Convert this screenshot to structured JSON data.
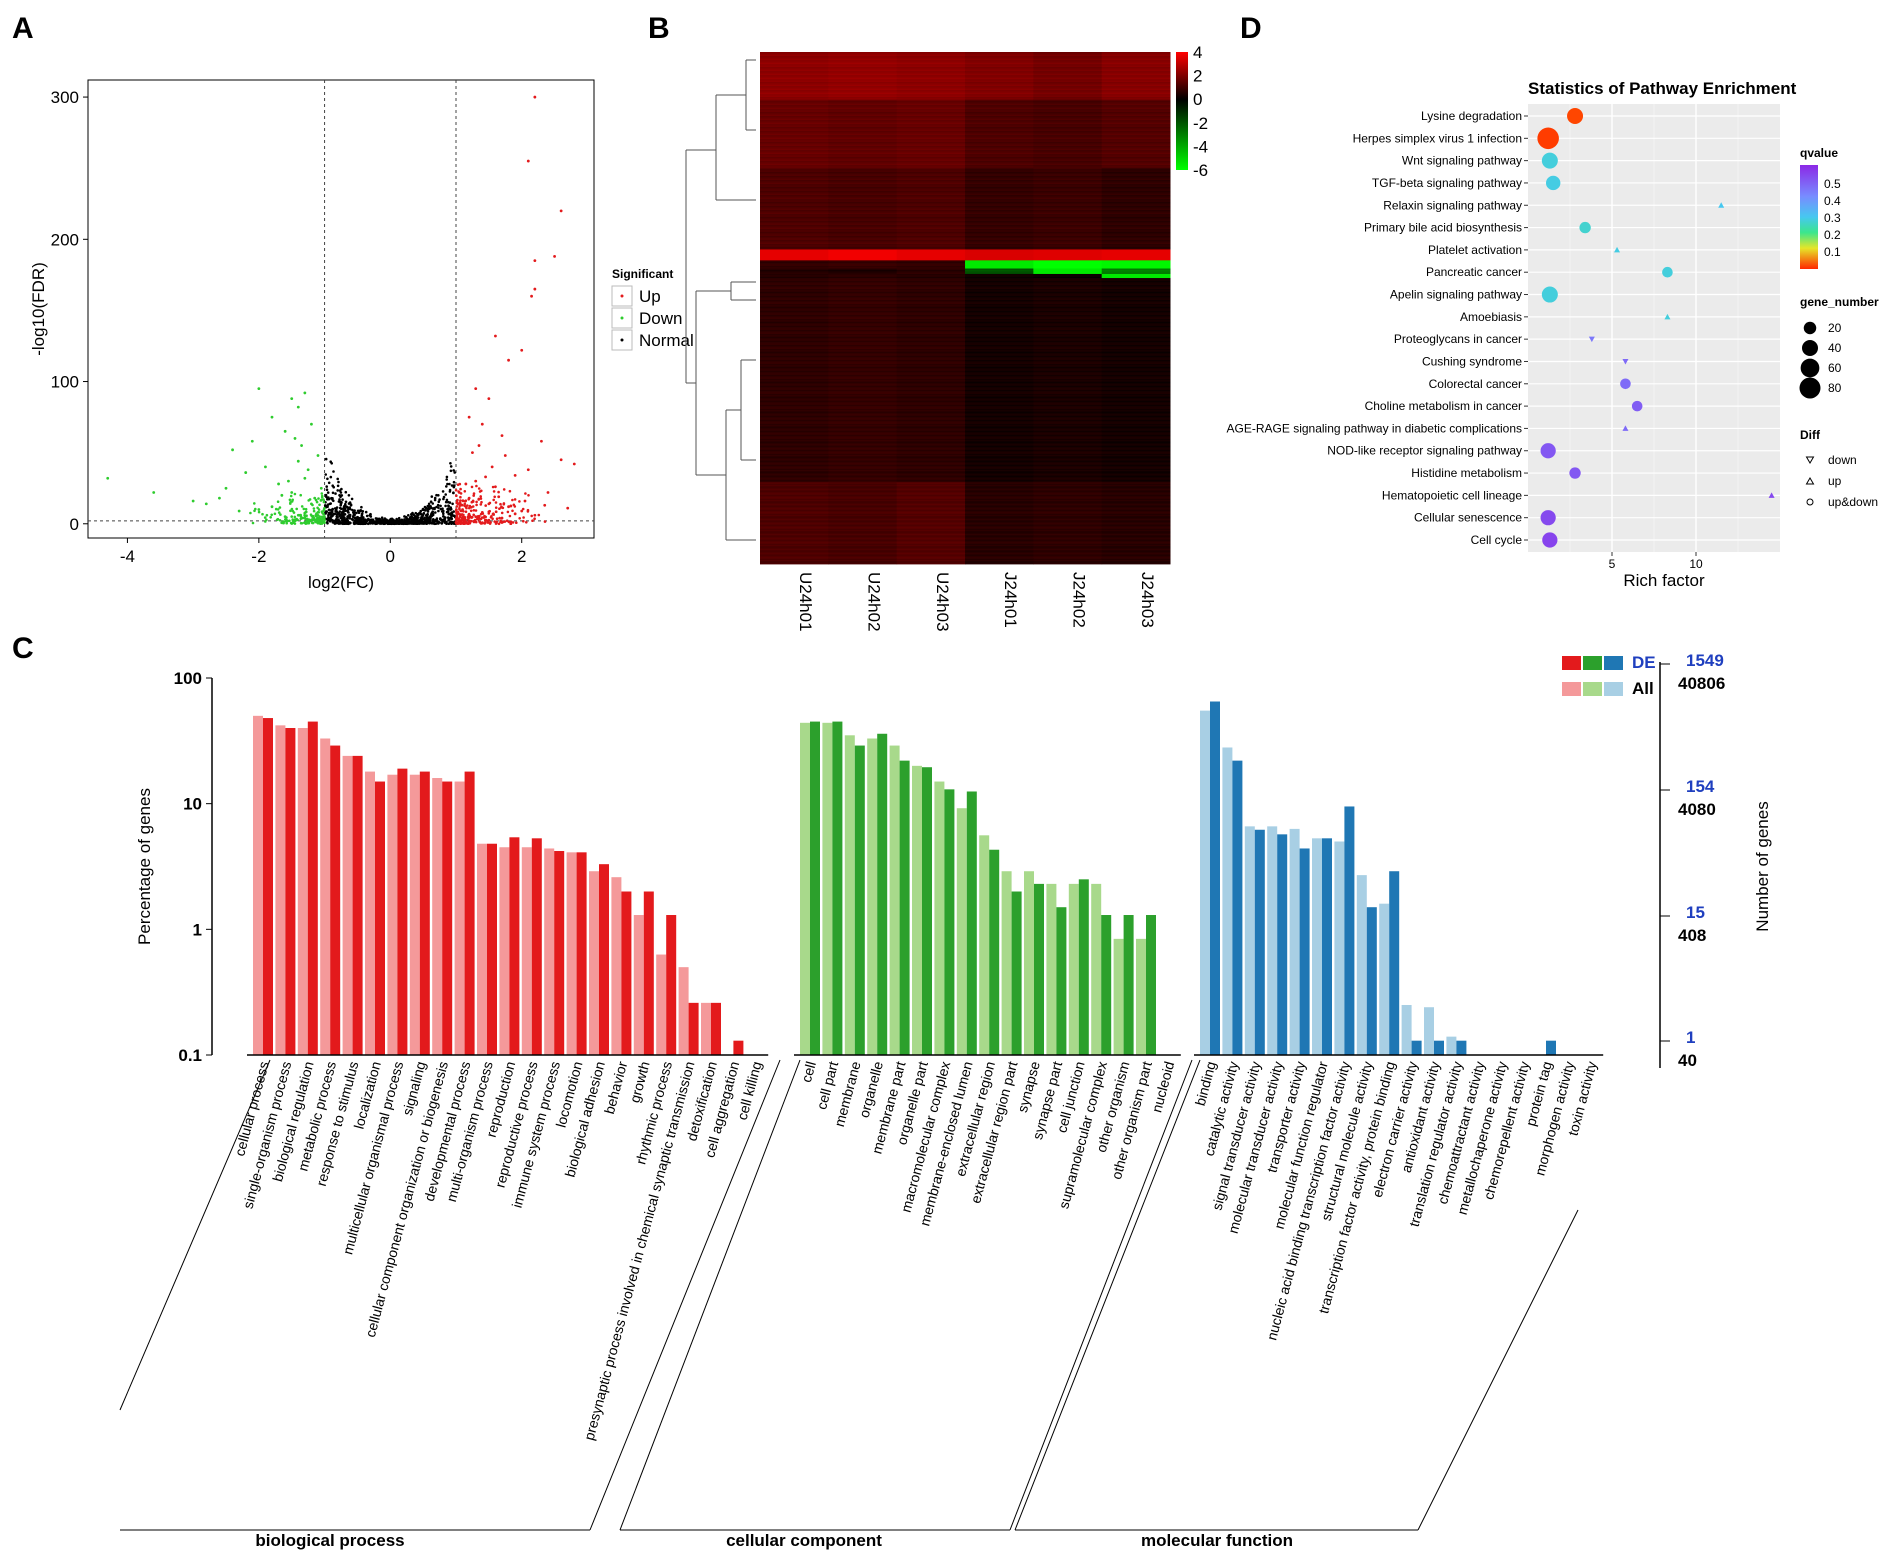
{
  "panels": {
    "a": "A",
    "b": "B",
    "c": "C",
    "d": "D"
  },
  "chart_data": [
    {
      "id": "A",
      "type": "scatter",
      "title": "",
      "xlabel": "log2(FC)",
      "ylabel": "-log10(FDR)",
      "xlim": [
        -4.6,
        3.1
      ],
      "ylim": [
        -10,
        312
      ],
      "xticks": [
        -4,
        -2,
        0,
        2
      ],
      "yticks": [
        0,
        100,
        200,
        300
      ],
      "fc_threshold": [
        -1,
        1
      ],
      "fdr_threshold": 2,
      "legend": {
        "title": "Significant",
        "entries": [
          "Up",
          "Down",
          "Normal"
        ],
        "placement": "right"
      },
      "colors": {
        "Up": "#e31a1c",
        "Down": "#2ecc2e",
        "Normal": "#000000"
      },
      "series": [
        {
          "name": "Up",
          "points": [
            [
              2.2,
              300
            ],
            [
              2.1,
              255
            ],
            [
              2.6,
              220
            ],
            [
              2.2,
              185
            ],
            [
              2.5,
              188
            ],
            [
              2.2,
              165
            ],
            [
              2.15,
              160
            ],
            [
              1.6,
              132
            ],
            [
              1.8,
              115
            ],
            [
              2.0,
              122
            ],
            [
              1.3,
              95
            ],
            [
              1.5,
              88
            ],
            [
              1.2,
              75
            ],
            [
              1.4,
              70
            ],
            [
              1.7,
              62
            ],
            [
              2.3,
              58
            ],
            [
              2.6,
              45
            ],
            [
              2.8,
              42
            ],
            [
              2.1,
              38
            ],
            [
              1.9,
              34
            ],
            [
              1.3,
              30
            ],
            [
              1.6,
              26
            ],
            [
              2.4,
              22
            ],
            [
              1.2,
              18
            ],
            [
              1.5,
              14
            ],
            [
              1.8,
              12
            ],
            [
              1.1,
              10
            ],
            [
              1.4,
              8
            ],
            [
              2.0,
              9
            ],
            [
              2.7,
              11
            ],
            [
              1.3,
              5
            ],
            [
              1.7,
              4
            ],
            [
              1.1,
              3
            ],
            [
              2.2,
              6
            ],
            [
              1.9,
              7
            ],
            [
              1.25,
              50
            ],
            [
              1.35,
              55
            ],
            [
              1.55,
              40
            ],
            [
              1.45,
              33
            ],
            [
              1.15,
              28
            ],
            [
              1.05,
              22
            ],
            [
              1.65,
              19
            ],
            [
              2.05,
              16
            ],
            [
              2.35,
              13
            ],
            [
              1.75,
              48
            ]
          ]
        },
        {
          "name": "Down",
          "points": [
            [
              -2.0,
              95
            ],
            [
              -1.5,
              88
            ],
            [
              -1.4,
              82
            ],
            [
              -1.3,
              92
            ],
            [
              -1.8,
              75
            ],
            [
              -1.2,
              70
            ],
            [
              -1.6,
              65
            ],
            [
              -2.1,
              58
            ],
            [
              -2.4,
              52
            ],
            [
              -1.1,
              48
            ],
            [
              -1.4,
              44
            ],
            [
              -1.9,
              40
            ],
            [
              -2.2,
              36
            ],
            [
              -1.3,
              32
            ],
            [
              -1.7,
              28
            ],
            [
              -1.05,
              25
            ],
            [
              -1.5,
              22
            ],
            [
              -2.6,
              18
            ],
            [
              -3.0,
              16
            ],
            [
              -3.6,
              22
            ],
            [
              -4.3,
              32
            ],
            [
              -1.2,
              14
            ],
            [
              -1.8,
              12
            ],
            [
              -2.0,
              10
            ],
            [
              -1.1,
              8
            ],
            [
              -1.4,
              6
            ],
            [
              -1.6,
              5
            ],
            [
              -1.3,
              4
            ],
            [
              -2.3,
              9
            ],
            [
              -1.15,
              18
            ],
            [
              -1.25,
              38
            ],
            [
              -1.35,
              55
            ],
            [
              -1.45,
              60
            ],
            [
              -1.55,
              30
            ],
            [
              -1.65,
              20
            ],
            [
              -2.5,
              25
            ],
            [
              -2.8,
              14
            ]
          ]
        }
      ]
    },
    {
      "id": "B",
      "type": "heatmap",
      "columns": [
        "U24h01",
        "U24h02",
        "U24h03",
        "J24h01",
        "J24h02",
        "J24h03"
      ],
      "colorbar": {
        "ticks": [
          4,
          2,
          0,
          -2,
          -4,
          -6
        ],
        "range": [
          -6,
          4
        ],
        "high_color": "#ff0000",
        "mid_color": "#000000",
        "low_color": "#00ff00"
      },
      "row_blocks": [
        {
          "rows": 35,
          "values": [
            2.2,
            2.3,
            2.2,
            2.0,
            1.8,
            2.1
          ]
        },
        {
          "rows": 50,
          "values": [
            1.6,
            1.5,
            1.6,
            1.2,
            1.1,
            1.3
          ]
        },
        {
          "rows": 60,
          "values": [
            1.2,
            1.1,
            1.2,
            0.8,
            0.9,
            0.7
          ]
        },
        {
          "rows": 8,
          "values": [
            3.6,
            3.8,
            3.6,
            3.4,
            3.5,
            3.6
          ]
        },
        {
          "rows": 6,
          "values": [
            0.8,
            0.9,
            0.8,
            -5.5,
            -6.0,
            -5.8
          ]
        },
        {
          "rows": 4,
          "values": [
            0.5,
            0.4,
            0.6,
            -2.0,
            -5.5,
            -3.0
          ]
        },
        {
          "rows": 3,
          "values": [
            0.6,
            0.7,
            0.6,
            0.3,
            0.2,
            -5.5
          ]
        },
        {
          "rows": 150,
          "values": [
            0.7,
            0.8,
            0.7,
            0.3,
            0.4,
            0.3
          ]
        },
        {
          "rows": 60,
          "values": [
            1.2,
            1.1,
            1.3,
            0.6,
            0.7,
            0.6
          ]
        }
      ]
    },
    {
      "id": "D",
      "type": "scatter",
      "title": "Statistics of Pathway Enrichment",
      "xlabel": "Rich factor",
      "ylabel": "",
      "xlim": [
        0,
        15
      ],
      "xticks": [
        5,
        10
      ],
      "pathways": [
        {
          "name": "Lysine degradation",
          "rich": 2.8,
          "q": 0.03,
          "genes": 40,
          "diff": "up&down"
        },
        {
          "name": "Herpes simplex virus 1 infection",
          "rich": 1.2,
          "q": 0.02,
          "genes": 85,
          "diff": "up&down"
        },
        {
          "name": "Wnt signaling pathway",
          "rich": 1.3,
          "q": 0.42,
          "genes": 40,
          "diff": "up&down"
        },
        {
          "name": "TGF-beta signaling pathway",
          "rich": 1.5,
          "q": 0.43,
          "genes": 30,
          "diff": "up&down"
        },
        {
          "name": "Relaxin signaling pathway",
          "rich": 11.5,
          "q": 0.45,
          "genes": 12,
          "diff": "up"
        },
        {
          "name": "Primary bile acid biosynthesis",
          "rich": 3.4,
          "q": 0.4,
          "genes": 15,
          "diff": "up&down"
        },
        {
          "name": "Platelet activation",
          "rich": 5.3,
          "q": 0.43,
          "genes": 12,
          "diff": "up"
        },
        {
          "name": "Pancreatic cancer",
          "rich": 8.3,
          "q": 0.42,
          "genes": 12,
          "diff": "up&down"
        },
        {
          "name": "Apelin signaling pathway",
          "rich": 1.3,
          "q": 0.42,
          "genes": 40,
          "diff": "up&down"
        },
        {
          "name": "Amoebiasis",
          "rich": 8.3,
          "q": 0.42,
          "genes": 12,
          "diff": "up"
        },
        {
          "name": "Proteoglycans in cancer",
          "rich": 3.8,
          "q": 0.58,
          "genes": 15,
          "diff": "down"
        },
        {
          "name": "Cushing syndrome",
          "rich": 5.8,
          "q": 0.6,
          "genes": 12,
          "diff": "down"
        },
        {
          "name": "Colorectal cancer",
          "rich": 5.8,
          "q": 0.6,
          "genes": 12,
          "diff": "up&down"
        },
        {
          "name": "Choline metabolism in cancer",
          "rich": 6.5,
          "q": 0.62,
          "genes": 12,
          "diff": "up&down"
        },
        {
          "name": "AGE-RAGE signaling pathway in diabetic complications",
          "rich": 5.8,
          "q": 0.6,
          "genes": 12,
          "diff": "up"
        },
        {
          "name": "NOD-like receptor signaling pathway",
          "rich": 1.2,
          "q": 0.63,
          "genes": 35,
          "diff": "up&down"
        },
        {
          "name": "Histidine metabolism",
          "rich": 2.8,
          "q": 0.63,
          "genes": 15,
          "diff": "up&down"
        },
        {
          "name": "Hematopoietic cell lineage",
          "rich": 14.5,
          "q": 0.65,
          "genes": 10,
          "diff": "up"
        },
        {
          "name": "Cellular senescence",
          "rich": 1.2,
          "q": 0.65,
          "genes": 35,
          "diff": "up&down"
        },
        {
          "name": "Cell cycle",
          "rich": 1.3,
          "q": 0.66,
          "genes": 35,
          "diff": "up&down"
        }
      ],
      "legend": {
        "qvalue": {
          "title": "qvalue",
          "ticks": [
            0.5,
            0.4,
            0.3,
            0.2,
            0.1
          ]
        },
        "gene_number": {
          "title": "gene_number",
          "ticks": [
            20,
            40,
            60,
            80
          ]
        },
        "diff": {
          "title": "Diff",
          "entries": [
            "down",
            "up",
            "up&down"
          ]
        }
      }
    },
    {
      "id": "C",
      "type": "bar",
      "scale": "log",
      "ylabel": "Percentage of genes",
      "ylabel_right": "Number of genes",
      "yticks": [
        "100",
        "10",
        "1",
        "0.1"
      ],
      "right_ticks_de": [
        "1549",
        "154",
        "15",
        "1"
      ],
      "right_ticks_all": [
        "40806",
        "4080",
        "408",
        "40"
      ],
      "legend": {
        "de": "DE",
        "all": "All"
      },
      "groups": [
        {
          "name": "biological process",
          "de_color": "#e31a1c",
          "all_color": "#f4999a",
          "categories": [
            "cellular process",
            "single-organism process",
            "biological regulation",
            "metabolic process",
            "response to stimulus",
            "localization",
            "multicellular organismal process",
            "signaling",
            "cellular component organization or biogenesis",
            "developmental process",
            "multi-organism process",
            "reproduction",
            "reproductive process",
            "immune system process",
            "locomotion",
            "biological adhesion",
            "behavior",
            "growth",
            "rhythmic process",
            "presynaptic process involved in chemical synaptic transmission",
            "detoxification",
            "cell aggregation",
            "cell killing"
          ],
          "all": [
            50,
            42,
            40,
            33,
            24,
            18,
            17,
            17,
            16,
            15,
            4.8,
            4.5,
            4.5,
            4.4,
            4.1,
            2.9,
            2.6,
            1.3,
            0.63,
            0.5,
            0.26,
            null,
            null
          ],
          "de": [
            48,
            40,
            45,
            29,
            24,
            15,
            19,
            18,
            15,
            18,
            4.8,
            5.4,
            5.3,
            4.2,
            4.1,
            3.3,
            2.0,
            2.0,
            1.3,
            0.26,
            0.26,
            0.13,
            null
          ]
        },
        {
          "name": "cellular component",
          "de_color": "#2ca02c",
          "all_color": "#a8d98b",
          "categories": [
            "cell",
            "cell part",
            "membrane",
            "organelle",
            "membrane part",
            "organelle part",
            "macromolecular complex",
            "membrane-enclosed lumen",
            "extracellular region",
            "extracellular region part",
            "synapse",
            "synapse part",
            "cell junction",
            "supramolecular complex",
            "other organism",
            "other organism part",
            "nucleoid"
          ],
          "all": [
            44,
            44,
            35,
            33,
            29,
            20,
            15,
            9.2,
            5.6,
            2.9,
            2.9,
            2.3,
            2.3,
            2.3,
            0.84,
            0.84,
            null
          ],
          "de": [
            45,
            45,
            29,
            36,
            22,
            19.5,
            13,
            12.5,
            4.3,
            2.0,
            2.3,
            1.5,
            2.5,
            1.3,
            1.3,
            1.3,
            null
          ]
        },
        {
          "name": "molecular function",
          "de_color": "#1f77b4",
          "all_color": "#a8cfe4",
          "categories": [
            "binding",
            "catalytic activity",
            "signal transducer activity",
            "molecular transducer activity",
            "transporter activity",
            "molecular function regulator",
            "nucleic acid binding transcription factor activity",
            "structural molecule activity",
            "transcription factor activity, protein binding",
            "electron carrier activity",
            "antioxidant activity",
            "translation regulator activity",
            "chemoattractant activity",
            "metallochaperone activity",
            "chemorepellent activity",
            "protein tag",
            "morphogen activity",
            "toxin activity"
          ],
          "all": [
            55,
            28,
            6.6,
            6.6,
            6.3,
            5.3,
            5.0,
            2.7,
            1.6,
            0.25,
            0.24,
            0.14,
            null,
            null,
            null,
            null,
            null,
            null
          ],
          "de": [
            65,
            22,
            6.2,
            5.7,
            4.4,
            5.3,
            9.5,
            1.5,
            2.9,
            0.13,
            0.13,
            0.13,
            null,
            null,
            null,
            0.13,
            null,
            null
          ]
        }
      ]
    }
  ]
}
